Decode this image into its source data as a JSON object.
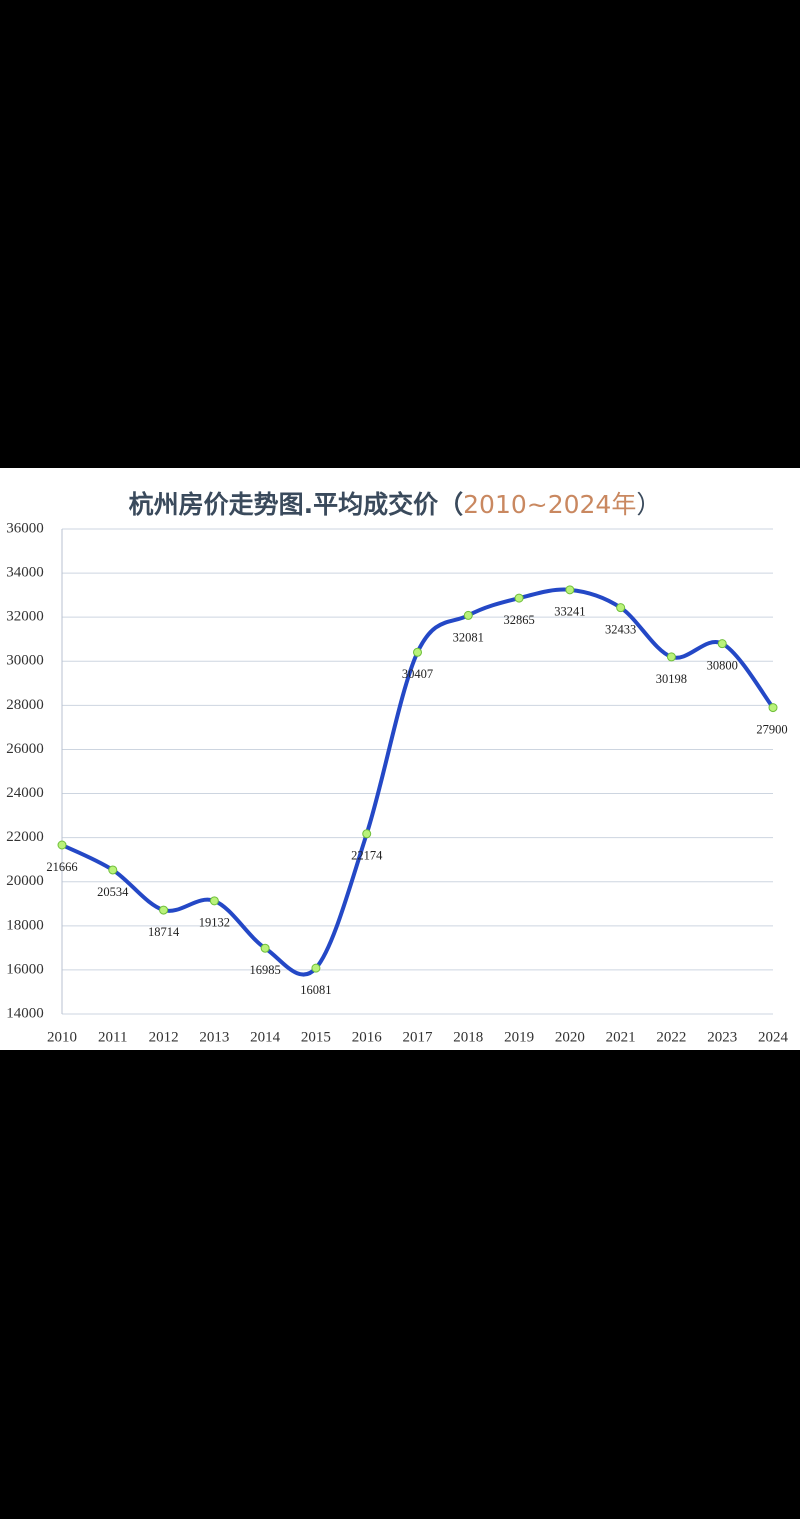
{
  "chart_data": {
    "type": "line",
    "title": [
      "杭州房价走势图.平均成交价（",
      "2010~2024年",
      "）"
    ],
    "categories": [
      "2010",
      "2011",
      "2012",
      "2013",
      "2014",
      "2015",
      "2016",
      "2017",
      "2018",
      "2019",
      "2020",
      "2021",
      "2022",
      "2023",
      "2024"
    ],
    "series": [
      {
        "name": "平均成交价",
        "color": "#2448c6",
        "values": [
          21666,
          20534,
          18714,
          19132,
          16985,
          16081,
          22174,
          30407,
          32081,
          32865,
          33241,
          32433,
          30198,
          30800,
          27900
        ]
      }
    ],
    "marker_color": "#b9f27a",
    "ylim": [
      14000,
      36000
    ],
    "yticks": [
      14000,
      16000,
      18000,
      20000,
      22000,
      24000,
      26000,
      28000,
      30000,
      32000,
      34000,
      36000
    ],
    "grid": true
  }
}
